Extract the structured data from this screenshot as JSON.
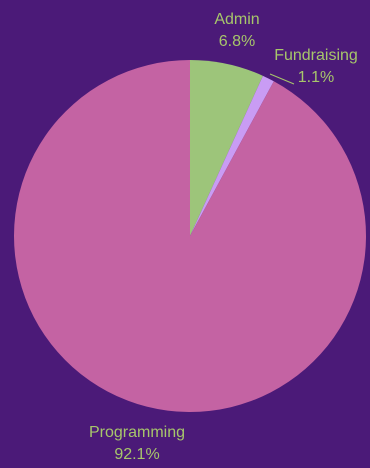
{
  "chart_data": {
    "type": "pie",
    "title": "",
    "slices": [
      {
        "label": "Admin",
        "value": 6.8,
        "display": "6.8%",
        "color": "#9dc57a"
      },
      {
        "label": "Fundraising",
        "value": 1.1,
        "display": "1.1%",
        "color": "#c99cf4"
      },
      {
        "label": "Programming",
        "value": 92.1,
        "display": "92.1%",
        "color": "#c463a3"
      }
    ]
  },
  "colors": {
    "background": "#4b1a78",
    "label_text": "#a7c66b"
  }
}
